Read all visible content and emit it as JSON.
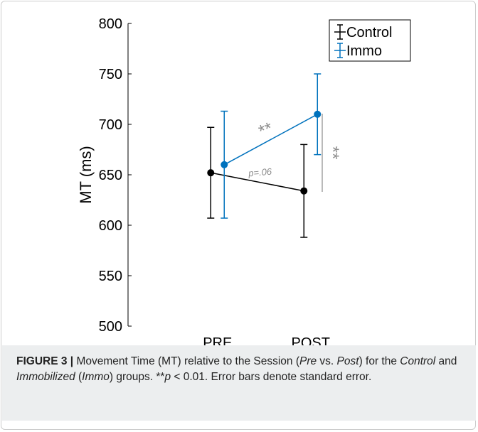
{
  "chart_data": {
    "type": "line",
    "y_label": "MT (ms)",
    "categories": [
      "PRE",
      "POST"
    ],
    "series": [
      {
        "name": "Control",
        "color": "#000000",
        "values": [
          652,
          634
        ],
        "errors": [
          45,
          46
        ]
      },
      {
        "name": "Immo",
        "color": "#0072bd",
        "values": [
          660,
          710
        ],
        "errors": [
          53,
          40
        ]
      }
    ],
    "ylim": [
      500,
      800
    ],
    "yticks": [
      500,
      550,
      600,
      650,
      700,
      750,
      800
    ],
    "legend": "upper right",
    "annotations": [
      "**",
      "p=.06",
      "**"
    ],
    "caption": {
      "label": "FIGURE 3 |",
      "parts": [
        "Movement Time (MT) relative to the Session (",
        "Pre",
        " vs. ",
        "Post",
        ") for the ",
        "Control",
        " and ",
        "Immobilized",
        " (",
        "Immo",
        ") groups. **",
        "p",
        " < 0.01. Error bars denote standard error."
      ]
    }
  }
}
